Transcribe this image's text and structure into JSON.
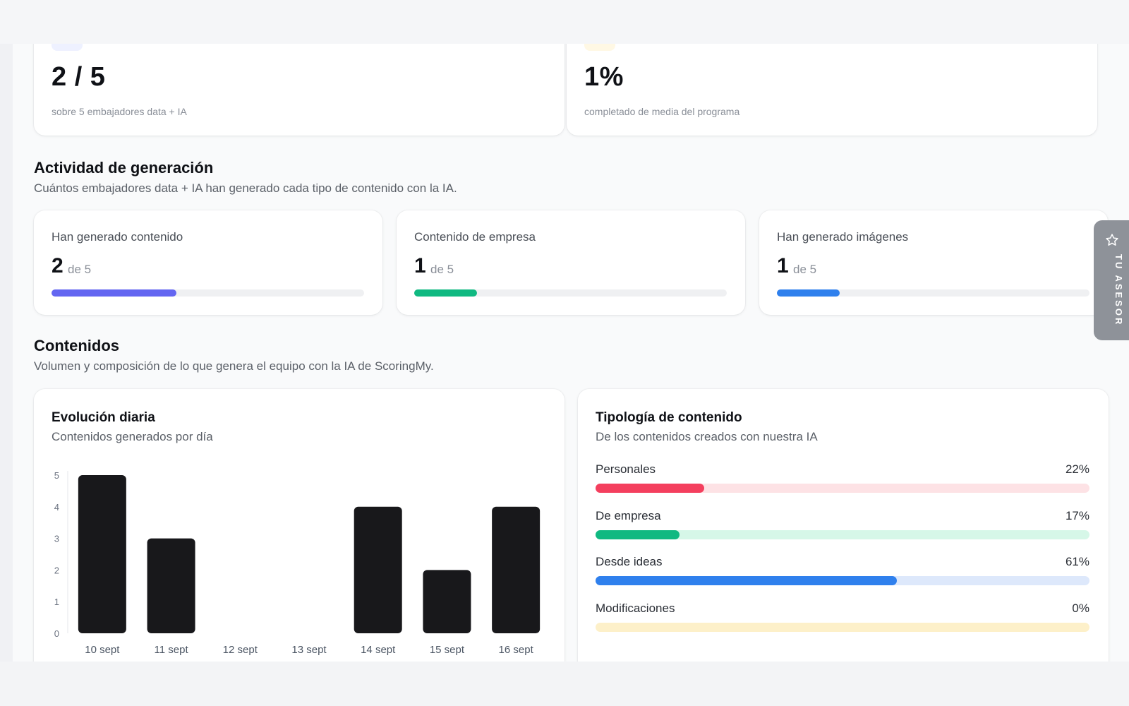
{
  "kpis": [
    {
      "value": "2 / 5",
      "caption": "sobre 5 embajadores data + IA",
      "chip_color": "#eef1ff"
    },
    {
      "value": "1%",
      "caption": "completado de media del programa",
      "chip_color": "#fff8e4"
    }
  ],
  "activity": {
    "title": "Actividad de generación",
    "subtitle": "Cuántos embajadores data + IA han generado cada tipo de contenido con la IA.",
    "cards": [
      {
        "label": "Han generado contenido",
        "count": "2",
        "of_text": "de 5",
        "progress": 0.4,
        "color": "#6366f1"
      },
      {
        "label": "Contenido de empresa",
        "count": "1",
        "of_text": "de 5",
        "progress": 0.2,
        "color": "#10b981"
      },
      {
        "label": "Han generado imágenes",
        "count": "1",
        "of_text": "de 5",
        "progress": 0.2,
        "color": "#2f80ed"
      }
    ]
  },
  "contenidos": {
    "title": "Contenidos",
    "subtitle": "Volumen y composición de lo que genera el equipo con la IA de ScoringMy."
  },
  "daily_chart": {
    "title": "Evolución diaria",
    "subtitle": "Contenidos generados por día"
  },
  "chart_data": {
    "type": "bar",
    "categories": [
      "10 sept",
      "11 sept",
      "12 sept",
      "13 sept",
      "14 sept",
      "15 sept",
      "16 sept"
    ],
    "values": [
      5,
      3,
      0,
      0,
      4,
      2,
      4
    ],
    "yticks": [
      0,
      1,
      2,
      3,
      4,
      5
    ],
    "ylim": [
      0,
      5
    ],
    "bar_color": "#18181b",
    "grid": false
  },
  "typology": {
    "title": "Tipología de contenido",
    "subtitle": "De los contenidos creados con nuestra IA",
    "items": [
      {
        "name": "Personales",
        "pct_label": "22%",
        "value": 22,
        "color": "#f43f5e",
        "track": "#fde2e5"
      },
      {
        "name": "De empresa",
        "pct_label": "17%",
        "value": 17,
        "color": "#10b981",
        "track": "#d6f7e8"
      },
      {
        "name": "Desde ideas",
        "pct_label": "61%",
        "value": 61,
        "color": "#2f80ed",
        "track": "#dde8fb"
      },
      {
        "name": "Modificaciones",
        "pct_label": "0%",
        "value": 0,
        "color": "#f5c542",
        "track": "#fdf0c9"
      }
    ]
  },
  "asesor": {
    "label": "TU ASESOR",
    "icon": "star-icon"
  }
}
